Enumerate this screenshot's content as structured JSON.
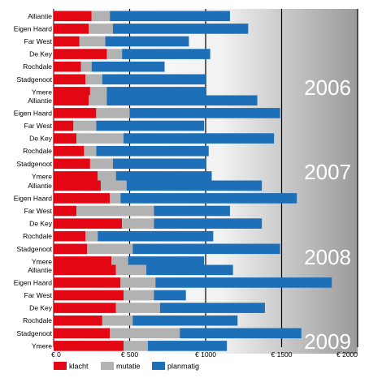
{
  "chart_data": {
    "type": "bar",
    "orientation": "horizontal",
    "stacked": true,
    "x_ticks": [
      "€ 0",
      "€ 500",
      "€ 1000",
      "€ 1500",
      "€ 2000"
    ],
    "xlim": [
      0,
      2000
    ],
    "grid": true,
    "legend_position": "bottom",
    "colors": {
      "klacht": "#e30613",
      "mutatie": "#b2b2b2",
      "planmatig": "#1d6fb8"
    },
    "series_names": [
      "klacht",
      "mutatie",
      "planmatig"
    ],
    "groups": [
      {
        "year": "2006",
        "categories": [
          "Alliantie",
          "Eigen Haard",
          "Far West",
          "De Key",
          "Rochdale",
          "Stadgenoot",
          "Ymere"
        ],
        "klacht": [
          250,
          230,
          170,
          350,
          180,
          210,
          240
        ],
        "mutatie": [
          120,
          160,
          170,
          100,
          70,
          110,
          110
        ],
        "planmatig": [
          790,
          890,
          550,
          580,
          480,
          680,
          650
        ]
      },
      {
        "year": "2007",
        "categories": [
          "Alliantie",
          "Eigen Haard",
          "Far West",
          "De Key",
          "Rochdale",
          "Stadgenoot",
          "Ymere"
        ],
        "klacht": [
          230,
          280,
          130,
          150,
          200,
          240,
          290
        ],
        "mutatie": [
          120,
          220,
          150,
          310,
          80,
          150,
          120
        ],
        "planmatig": [
          990,
          990,
          710,
          990,
          740,
          610,
          630
        ]
      },
      {
        "year": "2008",
        "categories": [
          "Alliantie",
          "Eigen Haard",
          "Far West",
          "De Key",
          "Rochdale",
          "Stadgenoot",
          "Ymere"
        ],
        "klacht": [
          310,
          370,
          150,
          450,
          210,
          220,
          380
        ],
        "mutatie": [
          170,
          70,
          510,
          210,
          80,
          300,
          110
        ],
        "planmatig": [
          890,
          1160,
          500,
          710,
          760,
          970,
          500
        ]
      },
      {
        "year": "2009",
        "categories": [
          "Alliantie",
          "Eigen Haard",
          "Far West",
          "De Key",
          "Rochdale",
          "Stadgenoot",
          "Ymere"
        ],
        "klacht": [
          410,
          440,
          460,
          410,
          320,
          370,
          460
        ],
        "mutatie": [
          200,
          230,
          200,
          290,
          200,
          460,
          160
        ],
        "planmatig": [
          570,
          1160,
          210,
          690,
          690,
          800,
          520
        ]
      }
    ]
  }
}
